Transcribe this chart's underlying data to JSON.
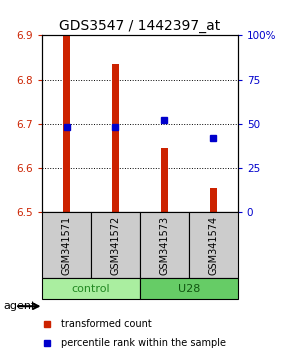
{
  "title": "GDS3547 / 1442397_at",
  "samples": [
    "GSM341571",
    "GSM341572",
    "GSM341573",
    "GSM341574"
  ],
  "bar_bottom": 6.5,
  "red_values": [
    6.9,
    6.835,
    6.645,
    6.555
  ],
  "blue_values_pct": [
    48,
    48,
    52,
    42
  ],
  "ylim_left": [
    6.5,
    6.9
  ],
  "ylim_right": [
    0,
    100
  ],
  "yticks_left": [
    6.5,
    6.6,
    6.7,
    6.8,
    6.9
  ],
  "yticks_right": [
    0,
    25,
    50,
    75,
    100
  ],
  "ytick_right_labels": [
    "0",
    "25",
    "50",
    "75",
    "100%"
  ],
  "bar_color": "#cc2200",
  "dot_color": "#0000cc",
  "title_fontsize": 10,
  "legend_labels": [
    "transformed count",
    "percentile rank within the sample"
  ],
  "legend_colors": [
    "#cc2200",
    "#0000cc"
  ],
  "bar_width": 0.15,
  "grid_yticks": [
    6.6,
    6.7,
    6.8
  ],
  "ctrl_color": "#aaeea0",
  "u28_color": "#66cc66",
  "sample_box_color": "#cccccc"
}
